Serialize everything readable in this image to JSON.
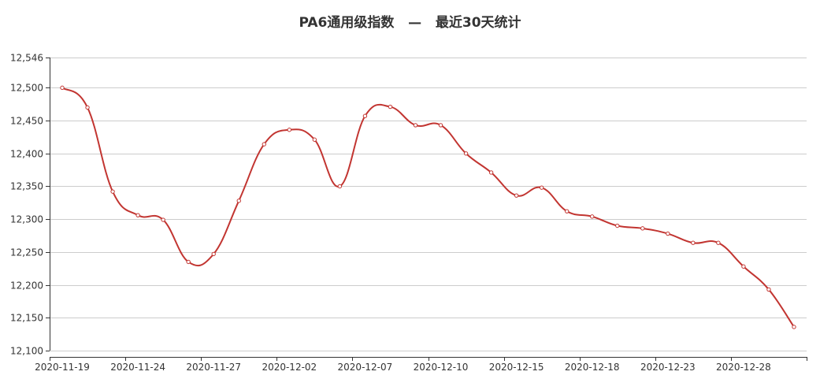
{
  "chart_data": {
    "type": "line",
    "title": "PA6通用级指数   —   最近30天统计",
    "xlabel": "",
    "ylabel": "",
    "ylim": [
      12100,
      12546
    ],
    "yticks": [
      "12,546",
      "12,500",
      "12,450",
      "12,400",
      "12,350",
      "12,300",
      "12,250",
      "12,200",
      "12,150",
      "12,100"
    ],
    "ytick_values": [
      12546,
      12500,
      12450,
      12400,
      12350,
      12300,
      12250,
      12200,
      12150,
      12100
    ],
    "xtick_labels": [
      "2020-11-19",
      "2020-11-24",
      "2020-11-27",
      "2020-12-02",
      "2020-12-07",
      "2020-12-10",
      "2020-12-15",
      "2020-12-18",
      "2020-12-23",
      "2020-12-28"
    ],
    "grid": true,
    "smooth": true,
    "line_color": "#c23531",
    "series": [
      {
        "values": [
          12500,
          12470,
          12342,
          12306,
          12299,
          12235,
          12247,
          12328,
          12414,
          12436,
          12421,
          12350,
          12457,
          12471,
          12443,
          12443,
          12400,
          12371,
          12336,
          12348,
          12312,
          12304,
          12290,
          12286,
          12278,
          12264,
          12264,
          12228,
          12193,
          12136
        ]
      }
    ]
  }
}
